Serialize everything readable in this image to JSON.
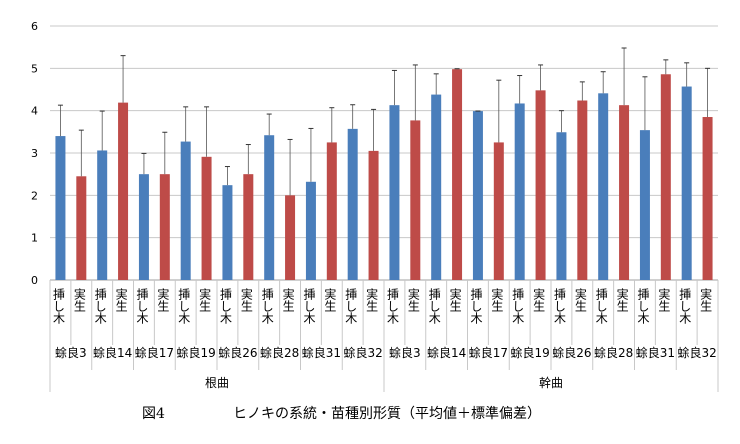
{
  "chart_data": {
    "type": "bar",
    "title": "",
    "caption": {
      "figure": "図4",
      "text": "ヒノキの系統・苗種別形質（平均値＋標準偏差）"
    },
    "xlabel": "",
    "ylabel": "",
    "ylim": [
      0,
      6
    ],
    "yticks": [
      0,
      1,
      2,
      3,
      4,
      5,
      6
    ],
    "grid": true,
    "error_bars": "mean + standard deviation",
    "seedling_types": [
      "挿し木",
      "実生"
    ],
    "colors": {
      "挿し木": "#4a7ebb",
      "実生": "#be4b48"
    },
    "strains": [
      "蜍良3",
      "蜍良14",
      "蜍良17",
      "蜍良19",
      "蜍良26",
      "蜍良28",
      "蜍良31",
      "蜍良32"
    ],
    "groups": [
      {
        "name": "根曲",
        "means": [
          [
            3.4,
            2.45
          ],
          [
            3.06,
            4.19
          ],
          [
            2.5,
            2.5
          ],
          [
            3.27,
            2.91
          ],
          [
            2.24,
            2.5
          ],
          [
            3.42,
            2.0
          ],
          [
            2.32,
            3.25
          ],
          [
            3.57,
            3.05
          ]
        ],
        "upper": [
          [
            4.13,
            3.54
          ],
          [
            3.99,
            5.3
          ],
          [
            2.99,
            3.49
          ],
          [
            4.09,
            4.09
          ],
          [
            2.68,
            3.2
          ],
          [
            3.92,
            3.32
          ],
          [
            3.58,
            4.07
          ],
          [
            4.14,
            4.03
          ]
        ]
      },
      {
        "name": "幹曲",
        "means": [
          [
            4.13,
            3.77
          ],
          [
            4.38,
            4.98
          ],
          [
            3.99,
            3.25
          ],
          [
            4.17,
            4.48
          ],
          [
            3.49,
            4.24
          ],
          [
            4.41,
            4.13
          ],
          [
            3.54,
            4.86
          ],
          [
            4.57,
            3.85
          ]
        ],
        "upper": [
          [
            4.95,
            5.08
          ],
          [
            4.87,
            4.99
          ],
          [
            3.99,
            4.72
          ],
          [
            4.83,
            5.08
          ],
          [
            4.0,
            4.68
          ],
          [
            4.92,
            5.48
          ],
          [
            4.8,
            5.2
          ],
          [
            5.13,
            5.0
          ]
        ]
      }
    ]
  }
}
